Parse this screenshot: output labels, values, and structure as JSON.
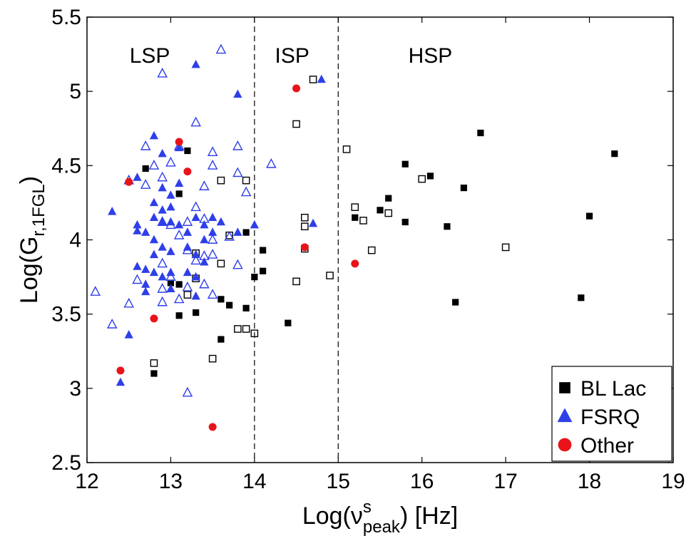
{
  "chart_data": {
    "type": "scatter",
    "title": "",
    "xlabel": {
      "base": "Log(ν",
      "sup": "s",
      "sub": "peak",
      "tail": ") [Hz]"
    },
    "ylabel": {
      "base": "Log(G",
      "sub": "r,1FGL",
      "tail": ")"
    },
    "xlim": [
      12,
      19
    ],
    "ylim": [
      2.5,
      5.5
    ],
    "xticks": [
      12,
      13,
      14,
      15,
      16,
      17,
      18,
      19
    ],
    "yticks": [
      2.5,
      3,
      3.5,
      4,
      4.5,
      5,
      5.5
    ],
    "xtick_labels": [
      "12",
      "13",
      "14",
      "15",
      "16",
      "17",
      "18",
      "19"
    ],
    "ytick_labels": [
      "2.5",
      "3",
      "3.5",
      "4",
      "4.5",
      "5",
      "5.5"
    ],
    "boundaries": [
      14,
      15
    ],
    "regions": [
      {
        "label": "LSP",
        "x": 12.75
      },
      {
        "label": "ISP",
        "x": 14.45
      },
      {
        "label": "HSP",
        "x": 16.1
      }
    ],
    "legend": {
      "position": "bottom-right",
      "entries": [
        {
          "label": "BL Lac",
          "marker": "square",
          "color": "#000000"
        },
        {
          "label": "FSRQ",
          "marker": "triangle",
          "color": "#2e3fe8"
        },
        {
          "label": "Other",
          "marker": "circle",
          "color": "#e8141a"
        }
      ]
    },
    "series": [
      {
        "name": "BL Lac",
        "marker": "square",
        "color": "#000000",
        "filled": [
          [
            12.7,
            4.48
          ],
          [
            13.2,
            4.6
          ],
          [
            13.1,
            4.31
          ],
          [
            13.0,
            3.71
          ],
          [
            13.1,
            3.7
          ],
          [
            13.1,
            3.49
          ],
          [
            13.3,
            3.51
          ],
          [
            12.8,
            3.1
          ],
          [
            13.6,
            3.6
          ],
          [
            13.7,
            3.56
          ],
          [
            13.9,
            3.54
          ],
          [
            13.9,
            4.05
          ],
          [
            13.6,
            3.33
          ],
          [
            14.0,
            3.75
          ],
          [
            14.1,
            3.93
          ],
          [
            14.1,
            3.79
          ],
          [
            14.4,
            3.44
          ],
          [
            15.2,
            4.15
          ],
          [
            15.5,
            4.2
          ],
          [
            15.6,
            4.28
          ],
          [
            15.8,
            4.51
          ],
          [
            15.8,
            4.12
          ],
          [
            16.1,
            4.43
          ],
          [
            16.3,
            4.09
          ],
          [
            16.4,
            3.58
          ],
          [
            16.5,
            4.35
          ],
          [
            16.7,
            4.72
          ],
          [
            17.9,
            3.61
          ],
          [
            18.0,
            4.16
          ],
          [
            18.3,
            4.58
          ]
        ],
        "open": [
          [
            12.8,
            3.17
          ],
          [
            13.2,
            3.63
          ],
          [
            13.3,
            3.91
          ],
          [
            13.3,
            3.74
          ],
          [
            13.6,
            4.4
          ],
          [
            13.6,
            3.84
          ],
          [
            13.9,
            4.4
          ],
          [
            13.7,
            4.03
          ],
          [
            13.8,
            3.4
          ],
          [
            13.9,
            3.4
          ],
          [
            14.0,
            3.37
          ],
          [
            13.5,
            3.2
          ],
          [
            14.5,
            4.78
          ],
          [
            14.7,
            5.08
          ],
          [
            14.6,
            4.15
          ],
          [
            14.6,
            4.09
          ],
          [
            14.6,
            3.94
          ],
          [
            14.5,
            3.72
          ],
          [
            14.9,
            3.76
          ],
          [
            15.1,
            4.61
          ],
          [
            15.2,
            4.22
          ],
          [
            15.3,
            4.13
          ],
          [
            15.4,
            3.93
          ],
          [
            15.6,
            4.18
          ],
          [
            16.0,
            4.41
          ],
          [
            17.0,
            3.95
          ]
        ]
      },
      {
        "name": "FSRQ",
        "marker": "triangle",
        "color": "#2e3fe8",
        "filled": [
          [
            13.3,
            5.18
          ],
          [
            13.8,
            4.98
          ],
          [
            14.8,
            5.08
          ],
          [
            12.8,
            4.7
          ],
          [
            12.9,
            4.58
          ],
          [
            13.1,
            4.62
          ],
          [
            12.6,
            4.42
          ],
          [
            12.9,
            4.35
          ],
          [
            13.0,
            4.3
          ],
          [
            12.8,
            4.25
          ],
          [
            12.9,
            4.2
          ],
          [
            13.0,
            4.22
          ],
          [
            13.1,
            4.38
          ],
          [
            12.3,
            4.19
          ],
          [
            12.6,
            4.1
          ],
          [
            12.6,
            4.06
          ],
          [
            12.7,
            4.05
          ],
          [
            12.8,
            4.15
          ],
          [
            12.9,
            4.12
          ],
          [
            13.0,
            4.12
          ],
          [
            13.1,
            4.1
          ],
          [
            13.2,
            4.05
          ],
          [
            13.3,
            4.15
          ],
          [
            13.4,
            4.1
          ],
          [
            13.5,
            4.15
          ],
          [
            13.5,
            4.05
          ],
          [
            13.6,
            4.12
          ],
          [
            13.4,
            4.0
          ],
          [
            12.8,
            4.0
          ],
          [
            12.9,
            3.95
          ],
          [
            12.8,
            3.9
          ],
          [
            13.0,
            3.92
          ],
          [
            13.2,
            3.95
          ],
          [
            13.3,
            3.9
          ],
          [
            13.4,
            3.85
          ],
          [
            12.6,
            3.82
          ],
          [
            12.7,
            3.8
          ],
          [
            12.8,
            3.78
          ],
          [
            12.9,
            3.75
          ],
          [
            13.0,
            3.78
          ],
          [
            13.2,
            3.78
          ],
          [
            13.3,
            3.75
          ],
          [
            12.7,
            3.65
          ],
          [
            13.0,
            3.67
          ],
          [
            13.3,
            3.62
          ],
          [
            13.8,
            4.05
          ],
          [
            14.0,
            4.1
          ],
          [
            14.7,
            4.11
          ],
          [
            12.5,
            3.36
          ],
          [
            12.4,
            3.04
          ],
          [
            12.7,
            3.7
          ]
        ],
        "open": [
          [
            13.6,
            5.28
          ],
          [
            12.9,
            5.12
          ],
          [
            13.3,
            4.79
          ],
          [
            12.7,
            4.63
          ],
          [
            13.1,
            4.63
          ],
          [
            13.5,
            4.59
          ],
          [
            13.8,
            4.63
          ],
          [
            13.0,
            4.52
          ],
          [
            13.5,
            4.5
          ],
          [
            12.8,
            4.5
          ],
          [
            12.9,
            4.42
          ],
          [
            13.8,
            4.45
          ],
          [
            14.2,
            4.51
          ],
          [
            12.5,
            4.4
          ],
          [
            12.7,
            4.37
          ],
          [
            13.4,
            4.36
          ],
          [
            13.9,
            4.32
          ],
          [
            13.3,
            4.22
          ],
          [
            12.9,
            4.12
          ],
          [
            13.0,
            4.1
          ],
          [
            13.2,
            4.12
          ],
          [
            13.4,
            4.14
          ],
          [
            13.1,
            4.03
          ],
          [
            13.5,
            4.0
          ],
          [
            13.7,
            4.02
          ],
          [
            13.2,
            3.93
          ],
          [
            13.4,
            3.89
          ],
          [
            13.5,
            3.9
          ],
          [
            13.3,
            3.86
          ],
          [
            13.8,
            3.83
          ],
          [
            12.9,
            3.84
          ],
          [
            13.0,
            3.75
          ],
          [
            13.2,
            3.68
          ],
          [
            13.4,
            3.7
          ],
          [
            12.9,
            3.67
          ],
          [
            13.1,
            3.6
          ],
          [
            12.9,
            3.58
          ],
          [
            13.5,
            3.63
          ],
          [
            12.5,
            3.57
          ],
          [
            12.1,
            3.65
          ],
          [
            12.3,
            3.43
          ],
          [
            13.2,
            2.97
          ],
          [
            12.6,
            3.73
          ]
        ]
      },
      {
        "name": "Other",
        "marker": "circle",
        "color": "#e8141a",
        "filled": [
          [
            14.5,
            5.02
          ],
          [
            13.1,
            4.66
          ],
          [
            13.2,
            4.46
          ],
          [
            12.5,
            4.39
          ],
          [
            14.6,
            3.95
          ],
          [
            15.2,
            3.84
          ],
          [
            12.8,
            3.47
          ],
          [
            12.4,
            3.12
          ],
          [
            13.5,
            2.74
          ]
        ],
        "open": []
      }
    ]
  }
}
